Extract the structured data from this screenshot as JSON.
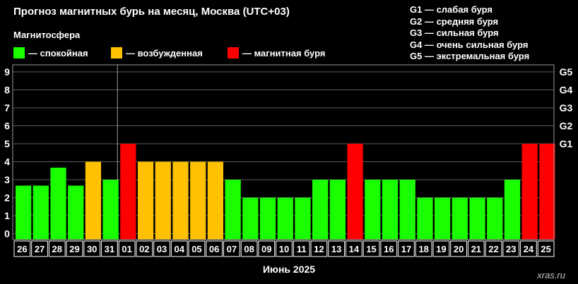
{
  "title": "Прогноз магнитных бурь на месяц, Москва (UTC+03)",
  "subtitle": "Магнитосфера",
  "legend": [
    {
      "label": "— спокойная",
      "color": "#1aff00"
    },
    {
      "label": "— возбужденная",
      "color": "#ffc100"
    },
    {
      "label": "— магнитная буря",
      "color": "#ff0000"
    }
  ],
  "g_legend": [
    "G1 — слабая буря",
    "G2 — средняя буря",
    "G3 — сильная буря",
    "G4 — очень сильная буря",
    "G5 — экстремальная буря"
  ],
  "footer": "Июнь 2025",
  "credit": "xras.ru",
  "colors": {
    "calm": "#1aff00",
    "excited": "#ffc100",
    "storm": "#ff0000"
  },
  "chart_data": {
    "type": "bar",
    "categories": [
      "26",
      "27",
      "28",
      "29",
      "30",
      "31",
      "01",
      "02",
      "03",
      "04",
      "05",
      "06",
      "07",
      "08",
      "09",
      "10",
      "11",
      "12",
      "13",
      "14",
      "15",
      "16",
      "17",
      "18",
      "19",
      "20",
      "21",
      "22",
      "23",
      "24",
      "25"
    ],
    "values": [
      2.67,
      2.67,
      3.67,
      2.67,
      4,
      3,
      5,
      4,
      4,
      4,
      4,
      4,
      3,
      2,
      2,
      2,
      2,
      3,
      3,
      5,
      3,
      3,
      3,
      2,
      2,
      2,
      2,
      2,
      3,
      5,
      5
    ],
    "levels": [
      "calm",
      "calm",
      "calm",
      "calm",
      "excited",
      "calm",
      "storm",
      "excited",
      "excited",
      "excited",
      "excited",
      "excited",
      "calm",
      "calm",
      "calm",
      "calm",
      "calm",
      "calm",
      "calm",
      "storm",
      "calm",
      "calm",
      "calm",
      "calm",
      "calm",
      "calm",
      "calm",
      "calm",
      "calm",
      "storm",
      "storm"
    ],
    "ylim": [
      0,
      9
    ],
    "yticks": [
      "0",
      "1",
      "2",
      "3",
      "4",
      "5",
      "6",
      "7",
      "8",
      "9"
    ],
    "right_ticks": [
      {
        "value": 5,
        "label": "G1"
      },
      {
        "value": 6,
        "label": "G2"
      },
      {
        "value": 7,
        "label": "G3"
      },
      {
        "value": 8,
        "label": "G4"
      },
      {
        "value": 9,
        "label": "G5"
      }
    ],
    "month_divider_after": "31",
    "grid": true,
    "xlabel": "Июнь 2025"
  }
}
